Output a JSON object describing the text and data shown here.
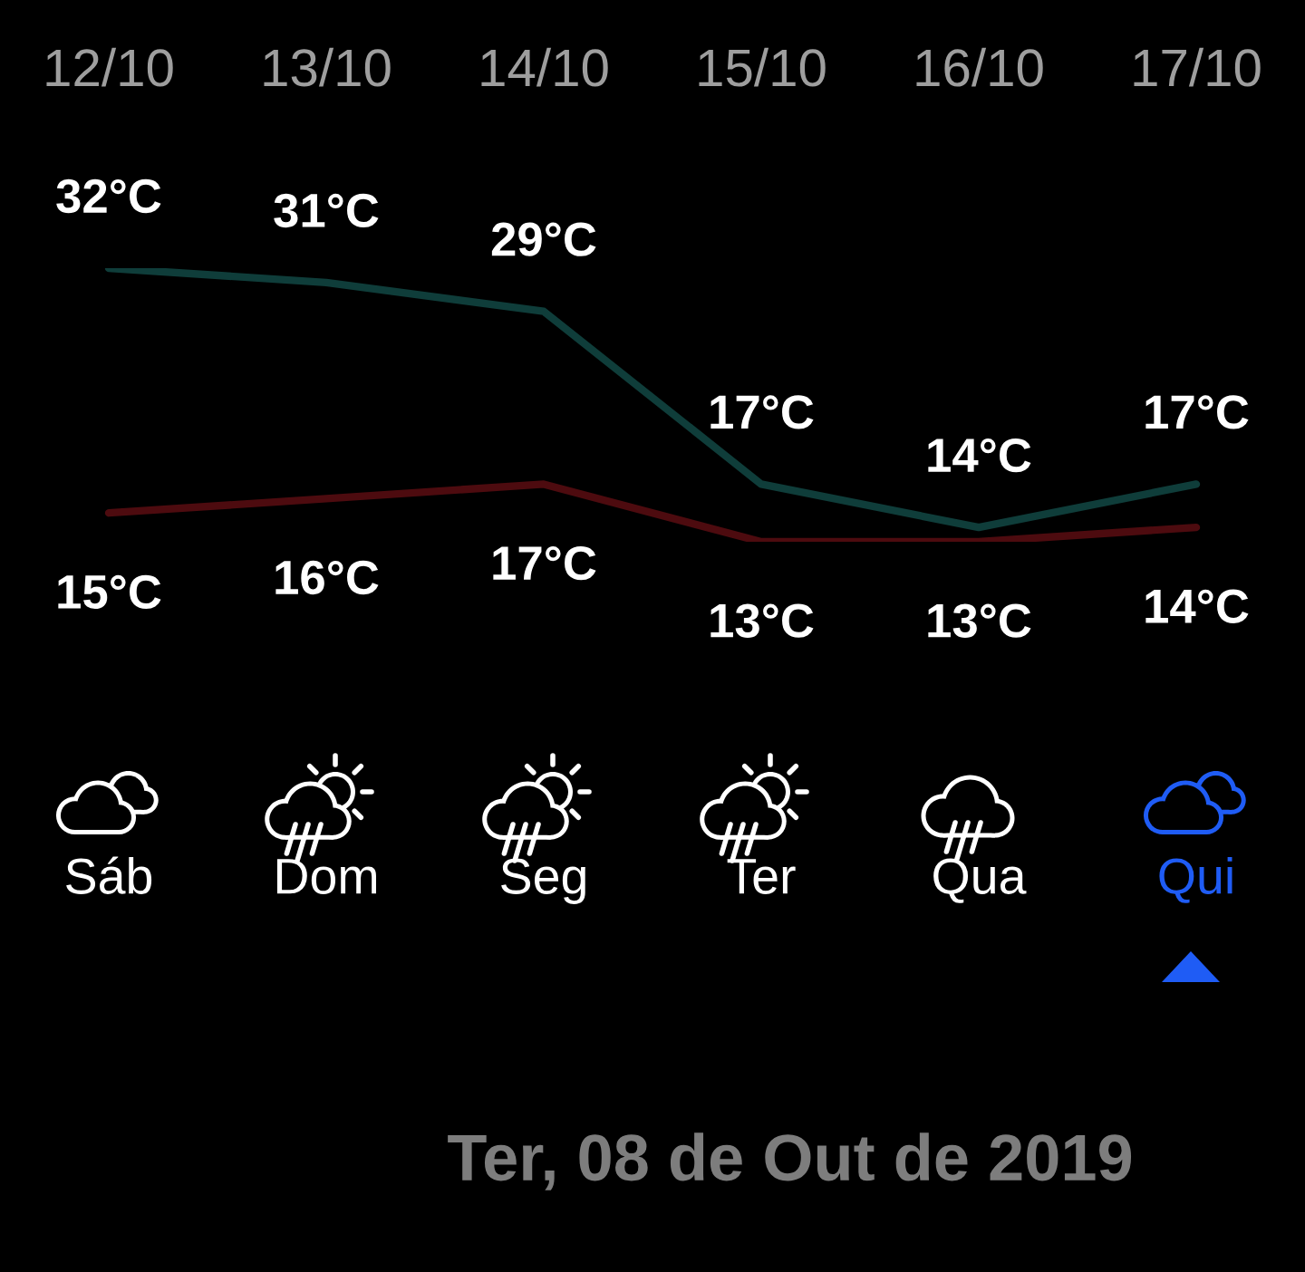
{
  "chart_data": {
    "type": "line",
    "categories": [
      "12/10",
      "13/10",
      "14/10",
      "15/10",
      "16/10",
      "17/10"
    ],
    "series": [
      {
        "color": "#0f3d3a",
        "values": [
          32,
          31,
          29,
          17,
          14,
          17
        ],
        "value_labels": [
          "32°C",
          "31°C",
          "29°C",
          "17°C",
          "14°C",
          "17°C"
        ]
      },
      {
        "color": "#4d0b0f",
        "values": [
          15,
          16,
          17,
          13,
          13,
          14
        ],
        "value_labels": [
          "15°C",
          "16°C",
          "17°C",
          "13°C",
          "13°C",
          "14°C"
        ]
      }
    ],
    "tick_labels": "x",
    "annotations": [
      "Sáb",
      "Dom",
      "Seg",
      "Ter",
      "Qua",
      "Qui",
      "Ter, 08 de Out de 2019"
    ]
  }
}
